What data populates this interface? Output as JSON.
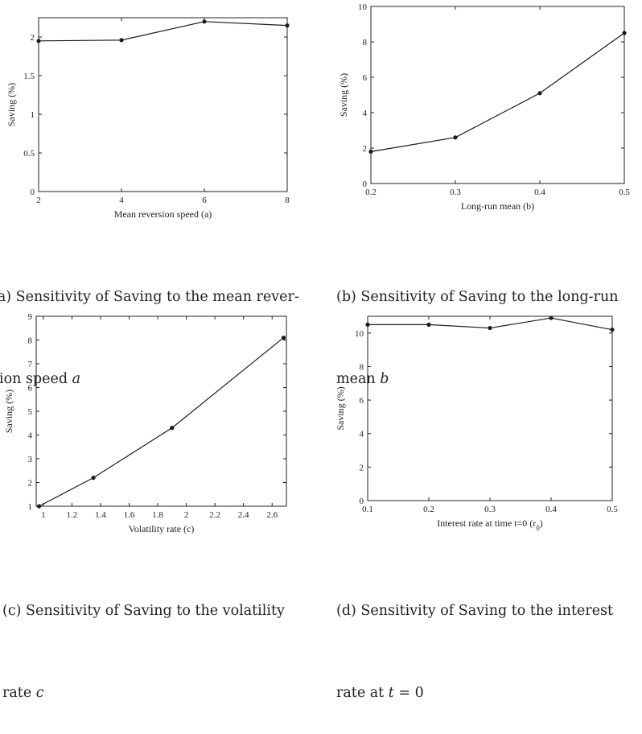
{
  "chart_data": [
    {
      "type": "line",
      "id": "a",
      "xlabel": "Mean reversion speed (a)",
      "ylabel": "Saving (%)",
      "xlim": [
        2,
        8
      ],
      "ylim": [
        0,
        2.25
      ],
      "xticks": [
        2,
        4,
        6,
        8
      ],
      "yticks": [
        0,
        0.5,
        1,
        1.5,
        2
      ],
      "ytick_labels": [
        "0",
        "0.5",
        "1",
        "1.5",
        "2"
      ],
      "xtick_labels": [
        "2",
        "4",
        "6",
        "8"
      ],
      "series": [
        {
          "x": [
            2,
            4,
            6,
            8
          ],
          "y": [
            1.95,
            1.96,
            2.2,
            2.15
          ]
        }
      ],
      "caption_lines": [
        "(a) Sensitivity of Saving to the mean rever-",
        "sion speed "
      ],
      "caption_var": "a"
    },
    {
      "type": "line",
      "id": "b",
      "xlabel": "Long-run mean (b)",
      "ylabel": "Saving (%)",
      "xlim": [
        0.2,
        0.5
      ],
      "ylim": [
        0,
        10
      ],
      "xticks": [
        0.2,
        0.3,
        0.4,
        0.5
      ],
      "yticks": [
        0,
        2,
        4,
        6,
        8,
        10
      ],
      "ytick_labels": [
        "0",
        "2",
        "4",
        "6",
        "8",
        "10"
      ],
      "xtick_labels": [
        "0.2",
        "0.3",
        "0.4",
        "0.5"
      ],
      "series": [
        {
          "x": [
            0.2,
            0.3,
            0.4,
            0.5
          ],
          "y": [
            1.8,
            2.6,
            5.1,
            8.5
          ]
        }
      ],
      "caption_lines": [
        "(b) Sensitivity of Saving to the long-run",
        "mean "
      ],
      "caption_var": "b"
    },
    {
      "type": "line",
      "id": "c",
      "xlabel": "Volatility rate (c)",
      "ylabel": "Saving (%)",
      "xlim": [
        0.95,
        2.7
      ],
      "ylim": [
        1,
        9
      ],
      "xticks": [
        1,
        1.2,
        1.4,
        1.6,
        1.8,
        2,
        2.2,
        2.4,
        2.6
      ],
      "yticks": [
        1,
        2,
        3,
        4,
        5,
        6,
        7,
        8,
        9
      ],
      "ytick_labels": [
        "1",
        "2",
        "3",
        "4",
        "5",
        "6",
        "7",
        "8",
        "9"
      ],
      "xtick_labels": [
        "1",
        "1.2",
        "1.4",
        "1.6",
        "1.8",
        "2",
        "2.2",
        "2.4",
        "2.6"
      ],
      "series": [
        {
          "x": [
            0.97,
            1.35,
            1.9,
            2.68
          ],
          "y": [
            1.0,
            2.2,
            4.3,
            8.1
          ]
        }
      ],
      "caption_lines": [
        "(c) Sensitivity of Saving to the volatility",
        "rate "
      ],
      "caption_var": "c"
    },
    {
      "type": "line",
      "id": "d",
      "xlabel": "Interest rate at time t=0 (r",
      "xlabel_sub": "0",
      "xlabel_end": ")",
      "ylabel": "Saving (%)",
      "xlim": [
        0.1,
        0.5
      ],
      "ylim": [
        0,
        11
      ],
      "xticks": [
        0.1,
        0.2,
        0.3,
        0.4,
        0.5
      ],
      "yticks": [
        0,
        2,
        4,
        6,
        8,
        10
      ],
      "ytick_labels": [
        "0",
        "2",
        "4",
        "6",
        "8",
        "10"
      ],
      "xtick_labels": [
        "0.1",
        "0.2",
        "0.3",
        "0.4",
        "0.5"
      ],
      "series": [
        {
          "x": [
            0.1,
            0.2,
            0.3,
            0.4,
            0.5
          ],
          "y": [
            10.5,
            10.5,
            10.3,
            10.9,
            10.2
          ]
        }
      ],
      "caption_lines": [
        "(d) Sensitivity of Saving to the interest",
        "rate at "
      ],
      "caption_var": "t",
      "caption_tail": " = 0"
    }
  ]
}
